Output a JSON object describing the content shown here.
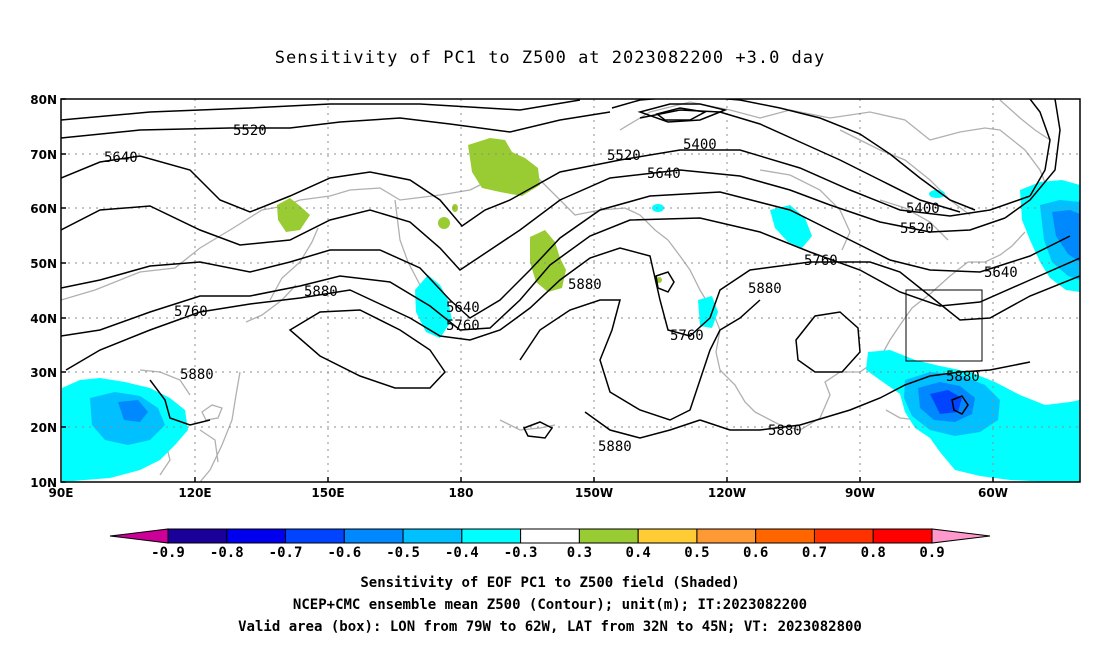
{
  "title": "Sensitivity of PC1 to Z500 at 2023082200 +3.0 day",
  "lat_labels": [
    "80N",
    "70N",
    "60N",
    "50N",
    "40N",
    "30N",
    "20N",
    "10N"
  ],
  "lon_labels": [
    "90E",
    "120E",
    "150E",
    "180",
    "150W",
    "120W",
    "90W",
    "60W"
  ],
  "contour_labels": [
    {
      "text": "5520",
      "c": "black"
    },
    {
      "text": "5640",
      "c": "black"
    },
    {
      "text": "5520",
      "c": "black"
    },
    {
      "text": "5400",
      "c": "black"
    },
    {
      "text": "5640",
      "c": "black"
    },
    {
      "text": "5400",
      "c": "black"
    },
    {
      "text": "5520",
      "c": "black"
    },
    {
      "text": "5760",
      "c": "black"
    },
    {
      "text": "5640",
      "c": "black"
    },
    {
      "text": "5880",
      "c": "black"
    },
    {
      "text": "5760",
      "c": "black"
    },
    {
      "text": "5640",
      "c": "black"
    },
    {
      "text": "5760",
      "c": "black"
    },
    {
      "text": "5880",
      "c": "black"
    },
    {
      "text": "5760",
      "c": "black"
    },
    {
      "text": "5880",
      "c": "black"
    },
    {
      "text": "5880",
      "c": "black"
    },
    {
      "text": "5880",
      "c": "black"
    },
    {
      "text": "5880",
      "c": "black"
    },
    {
      "text": "5880",
      "c": "black"
    }
  ],
  "colorbar": {
    "labels": [
      "-0.9",
      "-0.8",
      "-0.7",
      "-0.6",
      "-0.5",
      "-0.4",
      "-0.3",
      "0.3",
      "0.4",
      "0.5",
      "0.6",
      "0.7",
      "0.8",
      "0.9"
    ],
    "colors": [
      "#1a0099",
      "#0000ee",
      "#0044ff",
      "#0088ff",
      "#00c0ff",
      "#00ffff",
      "#ffffff",
      "#99cc33",
      "#ffcc33",
      "#ff9933",
      "#ff6600",
      "#ff3300",
      "#ff0000"
    ],
    "left_tip_color": "#cc0099",
    "right_tip_color": "#ff99cc"
  },
  "footer": {
    "line1": "Sensitivity of EOF PC1 to Z500 field (Shaded)",
    "line2": "NCEP+CMC ensemble mean Z500 (Contour); unit(m); IT:2023082200",
    "line3": "Valid area (box): LON from 79W to 62W, LAT from 32N to 45N; VT: 2023082800"
  },
  "valid_box": {
    "lon_from": "79W",
    "lon_to": "62W",
    "lat_from": "32N",
    "lat_to": "45N"
  }
}
